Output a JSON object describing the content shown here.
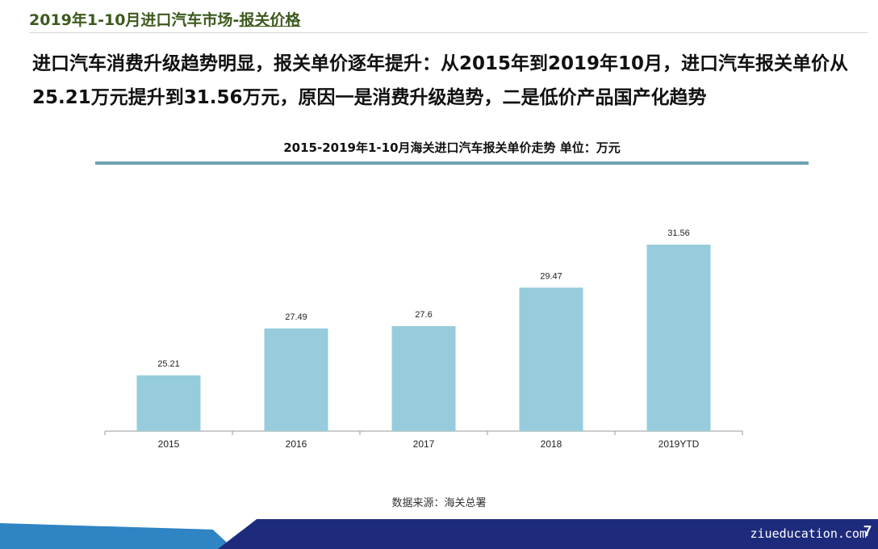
{
  "header": {
    "title_prefix": "2019年1-10月进口汽车市场-",
    "title_accent": "报关价格"
  },
  "headline": "进口汽车消费升级趋势明显，报关单价逐年提升：从2015年到2019年10月，进口汽车报关单价从25.21万元提升到31.56万元，原因一是消费升级趋势，二是低价产品国产化趋势",
  "chart_data": {
    "type": "bar",
    "title": "2015-2019年1-10月海关进口汽车报关单价走势   单位：万元",
    "categories": [
      "2015",
      "2016",
      "2017",
      "2018",
      "2019YTD"
    ],
    "values": [
      25.21,
      27.49,
      27.6,
      29.47,
      31.56
    ],
    "value_labels": [
      "25.21",
      "27.49",
      "27.6",
      "29.47",
      "31.56"
    ],
    "ylim": [
      22.5,
      31.56
    ],
    "bar_color": "#96ccdc",
    "grid": false,
    "xlabel": "",
    "ylabel": ""
  },
  "source": "数据来源：海关总署",
  "footer": {
    "url": "ziueducation.com",
    "page_number": "7"
  },
  "colors": {
    "footer_blue": "#1e2b7c",
    "footer_light": "#2f84c4",
    "title_green": "#3d5a1e"
  }
}
